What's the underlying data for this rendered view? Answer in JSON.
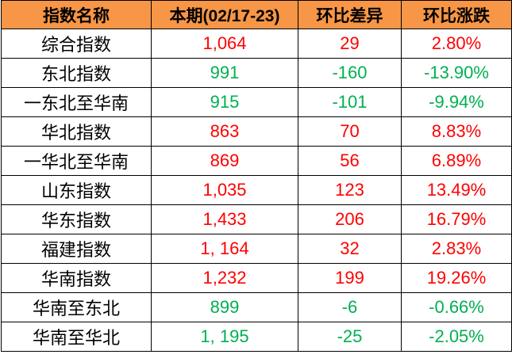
{
  "headers": [
    "指数名称",
    "本期(02/17-23)",
    "环比差异",
    "环比涨跌"
  ],
  "colors": {
    "header_bg": "#F79646",
    "up": "#FF0000",
    "down": "#00B050"
  },
  "rows": [
    {
      "name": "综合指数",
      "current": "1,064",
      "diff": "29",
      "pct": "2.80%",
      "dir": "up"
    },
    {
      "name": "东北指数",
      "current": "991",
      "diff": "-160",
      "pct": "-13.90%",
      "dir": "down"
    },
    {
      "name": "一东北至华南",
      "current": "915",
      "diff": "-101",
      "pct": "-9.94%",
      "dir": "down"
    },
    {
      "name": "华北指数",
      "current": "863",
      "diff": "70",
      "pct": "8.83%",
      "dir": "up"
    },
    {
      "name": "一华北至华南",
      "current": "869",
      "diff": "56",
      "pct": "6.89%",
      "dir": "up"
    },
    {
      "name": "山东指数",
      "current": "1,035",
      "diff": "123",
      "pct": "13.49%",
      "dir": "up"
    },
    {
      "name": "华东指数",
      "current": "1,433",
      "diff": "206",
      "pct": "16.79%",
      "dir": "up"
    },
    {
      "name": "福建指数",
      "current": "1, 164",
      "diff": "32",
      "pct": "2.83%",
      "dir": "up"
    },
    {
      "name": "华南指数",
      "current": "1,232",
      "diff": "199",
      "pct": "19.26%",
      "dir": "up"
    },
    {
      "name": "华南至东北",
      "current": "899",
      "diff": "-6",
      "pct": "-0.66%",
      "dir": "down"
    },
    {
      "name": "华南至华北",
      "current": "1, 195",
      "diff": "-25",
      "pct": "-2.05%",
      "dir": "down"
    }
  ]
}
